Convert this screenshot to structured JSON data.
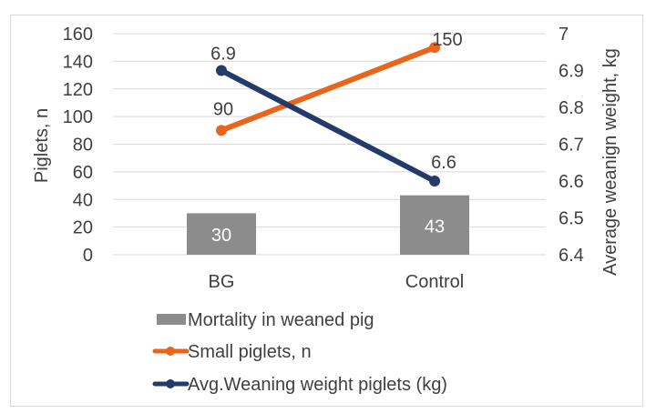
{
  "chart_data": {
    "type": "bar+line",
    "categories": [
      "BG",
      "Control"
    ],
    "series": [
      {
        "name": "Mortality in weaned pig",
        "type": "bar",
        "axis": "left",
        "values": [
          30,
          43
        ],
        "color": "#8c8c8c"
      },
      {
        "name": "Small piglets, n",
        "type": "line",
        "axis": "left",
        "values": [
          90,
          150
        ],
        "color": "#e8661c"
      },
      {
        "name": "Avg.Weaning weight piglets (kg)",
        "type": "line",
        "axis": "right",
        "values": [
          6.9,
          6.6
        ],
        "color": "#243a6b"
      }
    ],
    "data_labels": {
      "bar": [
        "30",
        "43"
      ],
      "small": [
        "90",
        "150"
      ],
      "weight": [
        "6.9",
        "6.6"
      ]
    },
    "ylabel": "Piglets, n",
    "y2label": "Average weanign weight, kg",
    "ylim": [
      0,
      160
    ],
    "y2lim": [
      6.4,
      7.0
    ],
    "yticks": [
      "0",
      "20",
      "40",
      "60",
      "80",
      "100",
      "120",
      "140",
      "160"
    ],
    "y2ticks": [
      "6.4",
      "6.5",
      "6.6",
      "6.7",
      "6.8",
      "6.9",
      "7"
    ],
    "grid": true,
    "legend_position": "bottom"
  }
}
